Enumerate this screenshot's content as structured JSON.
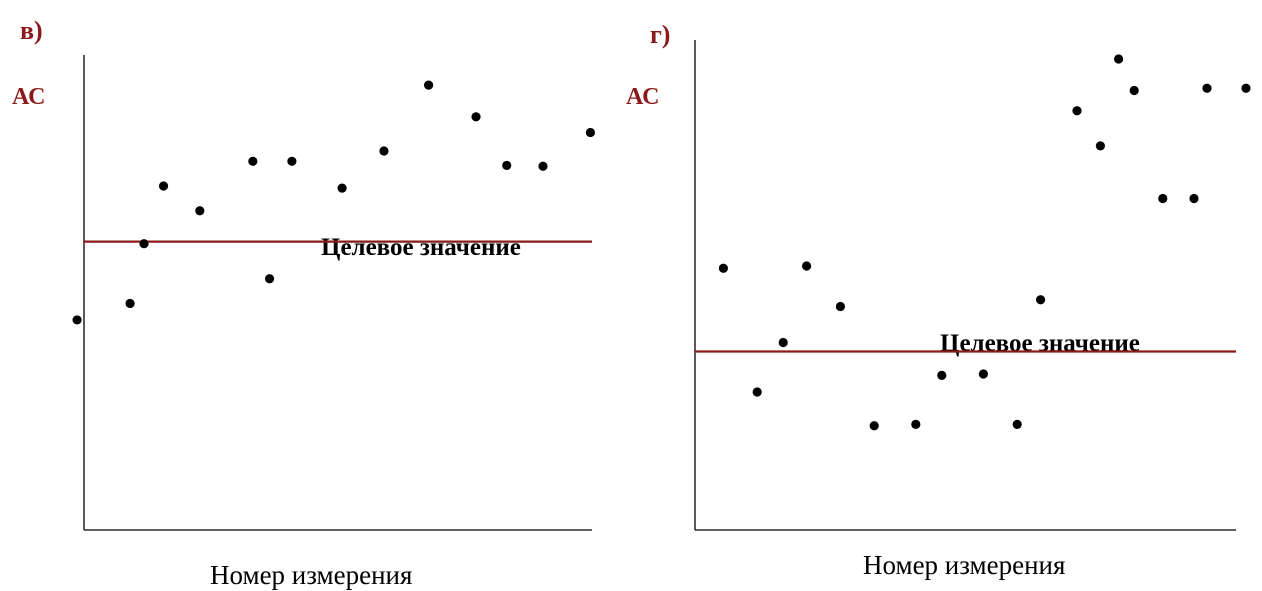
{
  "chart_data": [
    {
      "type": "scatter",
      "panel_label": "в)",
      "ylabel": "АС",
      "xlabel": "Номер измерения",
      "target_label": "Целевое значение",
      "colors": {
        "axis": "#000000",
        "target": "#8b1a1a",
        "points": "#000000"
      },
      "target": 0.53,
      "points": [
        {
          "x": 0.07,
          "y": 0.34
        },
        {
          "x": 0.165,
          "y": 0.38
        },
        {
          "x": 0.19,
          "y": 0.525
        },
        {
          "x": 0.225,
          "y": 0.665
        },
        {
          "x": 0.29,
          "y": 0.605
        },
        {
          "x": 0.385,
          "y": 0.725
        },
        {
          "x": 0.415,
          "y": 0.44
        },
        {
          "x": 0.455,
          "y": 0.725
        },
        {
          "x": 0.545,
          "y": 0.66
        },
        {
          "x": 0.62,
          "y": 0.75
        },
        {
          "x": 0.7,
          "y": 0.91
        },
        {
          "x": 0.785,
          "y": 0.833
        },
        {
          "x": 0.84,
          "y": 0.715
        },
        {
          "x": 0.905,
          "y": 0.713
        },
        {
          "x": 0.99,
          "y": 0.795
        }
      ]
    },
    {
      "type": "scatter",
      "panel_label": "г)",
      "ylabel": "АС",
      "xlabel": "Номер измерения",
      "target_label": "Целевое значение",
      "colors": {
        "axis": "#000000",
        "target": "#8b1a1a",
        "points": "#000000"
      },
      "target": 0.33,
      "points": [
        {
          "x": 0.045,
          "y": 0.515
        },
        {
          "x": 0.11,
          "y": 0.24
        },
        {
          "x": 0.16,
          "y": 0.35
        },
        {
          "x": 0.205,
          "y": 0.52
        },
        {
          "x": 0.27,
          "y": 0.43
        },
        {
          "x": 0.335,
          "y": 0.165
        },
        {
          "x": 0.415,
          "y": 0.168
        },
        {
          "x": 0.465,
          "y": 0.277
        },
        {
          "x": 0.545,
          "y": 0.28
        },
        {
          "x": 0.61,
          "y": 0.168
        },
        {
          "x": 0.655,
          "y": 0.445
        },
        {
          "x": 0.725,
          "y": 0.865
        },
        {
          "x": 0.77,
          "y": 0.787
        },
        {
          "x": 0.805,
          "y": 0.98
        },
        {
          "x": 0.835,
          "y": 0.91
        },
        {
          "x": 0.89,
          "y": 0.67
        },
        {
          "x": 0.95,
          "y": 0.67
        },
        {
          "x": 0.975,
          "y": 0.915
        },
        {
          "x": 1.05,
          "y": 0.915
        }
      ]
    }
  ]
}
